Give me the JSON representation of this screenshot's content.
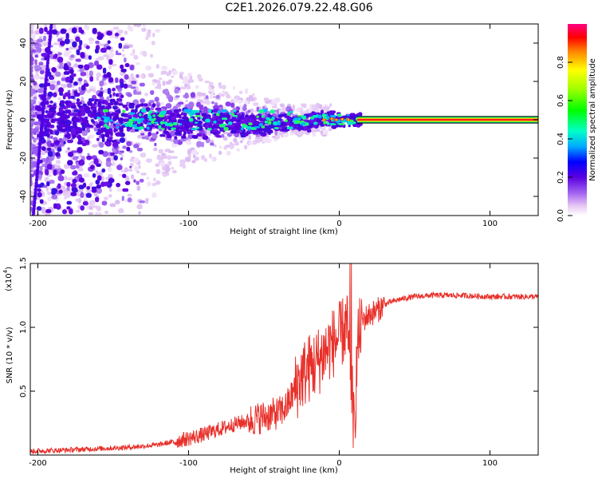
{
  "title": "C2E1.2026.079.22.48.G06",
  "chart_data": [
    {
      "type": "heatmap",
      "xlabel": "Height of straight line (km)",
      "ylabel": "Frequency (Hz)",
      "xlim": [
        -205,
        132
      ],
      "ylim": [
        -50,
        50
      ],
      "xticks": [
        -200,
        -100,
        0,
        100
      ],
      "xtick_labels": [
        "-200",
        "-100",
        "0",
        "100"
      ],
      "yticks": [
        -40,
        -20,
        0,
        20,
        40
      ],
      "ytick_labels": [
        "-40",
        "-20",
        "0",
        "20",
        "40"
      ],
      "colorbar": {
        "label": "Normalized spectral amplitude",
        "range": [
          0,
          1
        ],
        "ticks": [
          0.0,
          0.2,
          0.4,
          0.6,
          0.8
        ],
        "tick_labels": [
          "0.0",
          "0.2",
          "0.4",
          "0.6",
          "0.8"
        ]
      },
      "band_start_km": 12,
      "band_center_hz": 0,
      "band_peak_amplitude": 0.95
    },
    {
      "type": "line",
      "xlabel": "Height of straight line (km)",
      "ylabel": "SNR (10 * v/v)",
      "y_scale_label": "(x10",
      "y_scale_exp": "4",
      "y_scale_close": ")",
      "xlim": [
        -205,
        132
      ],
      "ylim": [
        0,
        1.5
      ],
      "xticks": [
        -200,
        -100,
        0,
        100
      ],
      "xtick_labels": [
        "-200",
        "-100",
        "0",
        "100"
      ],
      "yticks": [
        0.5,
        1.0,
        1.5
      ],
      "ytick_labels": [
        "0.5",
        "1.0",
        "1.5"
      ],
      "color": "#e8302a",
      "series": [
        {
          "name": "SNR",
          "x": [
            -205,
            -180,
            -160,
            -140,
            -120,
            -100,
            -90,
            -80,
            -70,
            -60,
            -50,
            -40,
            -35,
            -30,
            -25,
            -20,
            -15,
            -10,
            -5,
            0,
            5,
            8,
            10,
            12,
            15,
            20,
            25,
            30,
            40,
            50,
            60,
            80,
            100,
            120,
            132
          ],
          "y": [
            0.03,
            0.04,
            0.05,
            0.06,
            0.08,
            0.13,
            0.16,
            0.2,
            0.24,
            0.27,
            0.3,
            0.33,
            0.38,
            0.5,
            0.62,
            0.68,
            0.72,
            0.8,
            0.87,
            0.92,
            1.02,
            0.6,
            0.15,
            0.85,
            1.05,
            1.1,
            1.13,
            1.18,
            1.22,
            1.24,
            1.25,
            1.25,
            1.24,
            1.24,
            1.24
          ]
        }
      ]
    }
  ]
}
